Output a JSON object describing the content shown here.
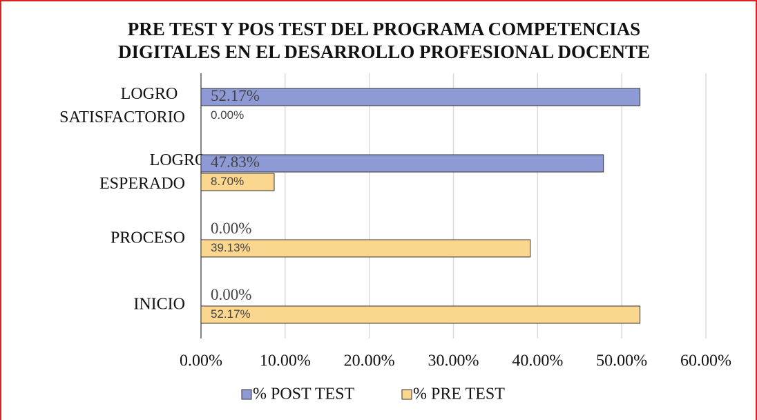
{
  "chart_data": {
    "type": "hbar",
    "title": [
      "PRE TEST Y POS TEST DEL PROGRAMA COMPETENCIAS",
      "DIGITALES EN EL DESARROLLO PROFESIONAL DOCENTE"
    ],
    "categories": [
      "LOGRO SATISFACTORIO",
      "LOGRO ESPERADO",
      "PROCESO",
      "INICIO"
    ],
    "series": [
      {
        "name": "% POST TEST",
        "color": "#8e9ad6",
        "values": [
          52.17,
          47.83,
          0,
          0
        ],
        "value_labels": [
          "52.17%",
          "47.83%",
          "0.00%",
          "0.00%"
        ]
      },
      {
        "name": "% PRE TEST",
        "color": "#fbd68f",
        "values": [
          0,
          8.7,
          39.13,
          52.17
        ],
        "value_labels": [
          "0.00%",
          "8.70%",
          "39.13%",
          "52.17%"
        ]
      }
    ],
    "xlim": [
      0,
      60
    ],
    "xticks": [
      {
        "value": 0,
        "label": "0.00%"
      },
      {
        "value": 10,
        "label": "10.00%"
      },
      {
        "value": 20,
        "label": "20.00%"
      },
      {
        "value": 30,
        "label": "30.00%"
      },
      {
        "value": 40,
        "label": "40.00%"
      },
      {
        "value": 50,
        "label": "50.00%"
      },
      {
        "value": 60,
        "label": "60.00%"
      }
    ],
    "grid": true
  }
}
